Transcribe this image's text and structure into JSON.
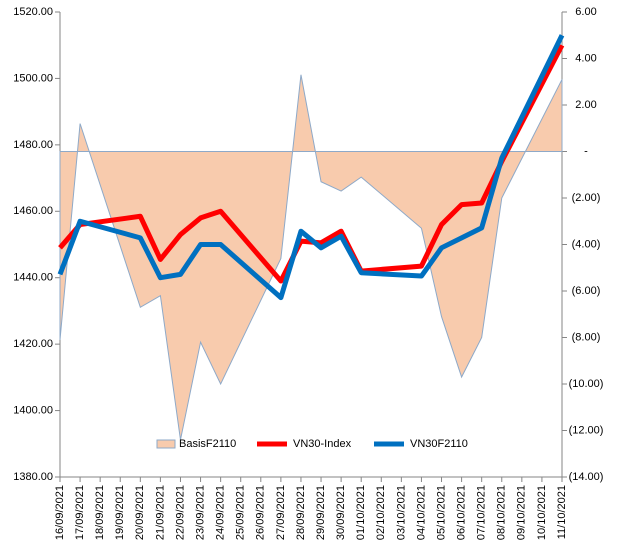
{
  "chart_data": {
    "type": "line",
    "categories": [
      "16/09/2021",
      "17/09/2021",
      "18/09/2021",
      "19/09/2021",
      "20/09/2021",
      "21/09/2021",
      "22/09/2021",
      "23/09/2021",
      "24/09/2021",
      "25/09/2021",
      "26/09/2021",
      "27/09/2021",
      "28/09/2021",
      "29/09/2021",
      "30/09/2021",
      "01/10/2021",
      "02/10/2021",
      "03/10/2021",
      "04/10/2021",
      "05/10/2021",
      "06/10/2021",
      "07/10/2021",
      "08/10/2021",
      "09/10/2021",
      "10/10/2021",
      "11/10/2021"
    ],
    "x": [
      "16/09/2021",
      "17/09/2021",
      "20/09/2021",
      "21/09/2021",
      "22/09/2021",
      "23/09/2021",
      "24/09/2021",
      "27/09/2021",
      "28/09/2021",
      "29/09/2021",
      "30/09/2021",
      "01/10/2021",
      "04/10/2021",
      "05/10/2021",
      "06/10/2021",
      "07/10/2021",
      "08/10/2021",
      "11/10/2021"
    ],
    "series": [
      {
        "name": "BasisF2110",
        "type": "area",
        "axis": "y2",
        "color": "#f8cbad",
        "values": [
          -8.1,
          1.2,
          -6.7,
          -6.2,
          -12.4,
          -8.2,
          -10.0,
          -4.6,
          3.3,
          -1.3,
          -1.7,
          -1.1,
          -3.3,
          -7.1,
          -9.7,
          -8.0,
          -2.0,
          3.1
        ]
      },
      {
        "name": "VN30-Index",
        "type": "line",
        "color": "#ff0000",
        "values": [
          1449,
          1456,
          1458.5,
          1445.5,
          1453,
          1458,
          1460,
          1439,
          1451,
          1450.5,
          1454,
          1442,
          1443.5,
          1456,
          1462,
          1462.5,
          1475,
          1510
        ]
      },
      {
        "name": "VN30F2110",
        "type": "line",
        "color": "#0070c0",
        "values": [
          1441,
          1457,
          1452,
          1440,
          1441,
          1450,
          1450,
          1434,
          1454,
          1449,
          1452.5,
          1441.5,
          1440.5,
          1449,
          1452,
          1455,
          1476,
          1513
        ]
      }
    ],
    "ylim": [
      1380,
      1520
    ],
    "yticks": [
      {
        "value": 1380,
        "label": "1380.00"
      },
      {
        "value": 1400,
        "label": "1400.00"
      },
      {
        "value": 1420,
        "label": "1420.00"
      },
      {
        "value": 1440,
        "label": "1440.00"
      },
      {
        "value": 1460,
        "label": "1460.00"
      },
      {
        "value": 1480,
        "label": "1480.00"
      },
      {
        "value": 1500,
        "label": "1500.00"
      },
      {
        "value": 1520,
        "label": "1520.00"
      }
    ],
    "y2lim": [
      -14,
      6
    ],
    "y2ticks": [
      {
        "value": -14,
        "label": "(14.00)"
      },
      {
        "value": -12,
        "label": "(12.00)"
      },
      {
        "value": -10,
        "label": "(10.00)"
      },
      {
        "value": -8,
        "label": "(8.00)"
      },
      {
        "value": -6,
        "label": "(6.00)"
      },
      {
        "value": -4,
        "label": "(4.00)"
      },
      {
        "value": -2,
        "label": "(2.00)"
      },
      {
        "value": 0,
        "label": "-"
      },
      {
        "value": 2,
        "label": "2.00"
      },
      {
        "value": 4,
        "label": "4.00"
      },
      {
        "value": 6,
        "label": "6.00"
      }
    ],
    "legend": "bottom"
  }
}
